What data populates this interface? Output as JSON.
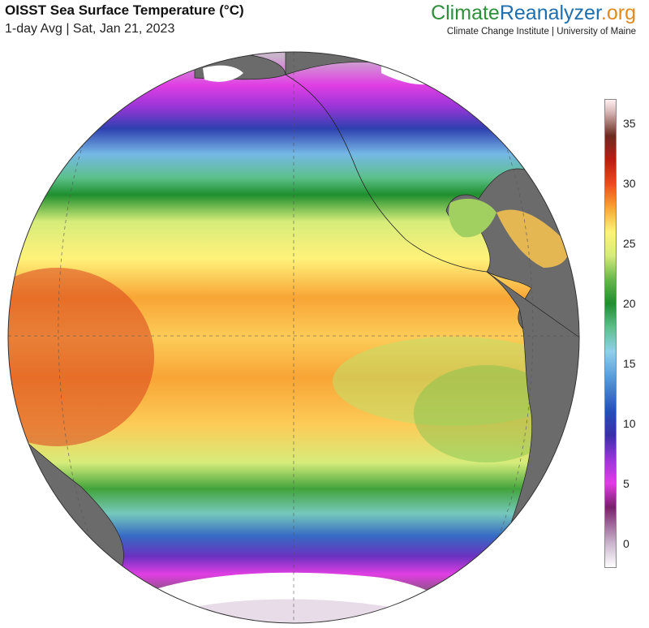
{
  "header": {
    "title": "OISST Sea Surface Temperature (°C)",
    "subtitle": "1-day Avg | Sat, Jan 21, 2023"
  },
  "brand": {
    "part1": "Climate",
    "part2": "Reanalyzer",
    "part3": ".org",
    "institution": "Climate Change Institute | University of Maine",
    "colors": {
      "climate": "#2f8f3a",
      "reanalyzer": "#1f6fae",
      "org": "#e08a1e"
    }
  },
  "colorbar": {
    "unit": "°C",
    "min": -2,
    "max": 37,
    "ticks": [
      {
        "value": 35,
        "label": "35"
      },
      {
        "value": 30,
        "label": "30"
      },
      {
        "value": 25,
        "label": "25"
      },
      {
        "value": 20,
        "label": "20"
      },
      {
        "value": 15,
        "label": "15"
      },
      {
        "value": 10,
        "label": "10"
      },
      {
        "value": 5,
        "label": "5"
      },
      {
        "value": 0,
        "label": "0"
      }
    ],
    "stops": [
      {
        "value": -2,
        "color": "#ffffff"
      },
      {
        "value": 0,
        "color": "#c9b4cc"
      },
      {
        "value": 3,
        "color": "#7a1f6e"
      },
      {
        "value": 5,
        "color": "#e03ee3"
      },
      {
        "value": 7,
        "color": "#9a35d8"
      },
      {
        "value": 9,
        "color": "#3a2fa8"
      },
      {
        "value": 11,
        "color": "#2450b8"
      },
      {
        "value": 14,
        "color": "#5aa0dd"
      },
      {
        "value": 16,
        "color": "#8fd0ec"
      },
      {
        "value": 18,
        "color": "#5cc08a"
      },
      {
        "value": 20,
        "color": "#1e8f2e"
      },
      {
        "value": 22,
        "color": "#66b84a"
      },
      {
        "value": 24,
        "color": "#d6ec7a"
      },
      {
        "value": 26,
        "color": "#fff27a"
      },
      {
        "value": 28,
        "color": "#f8a535"
      },
      {
        "value": 30,
        "color": "#ec4a1c"
      },
      {
        "value": 32,
        "color": "#b81e10"
      },
      {
        "value": 34,
        "color": "#6e2a1e"
      },
      {
        "value": 36,
        "color": "#d9b8b8"
      },
      {
        "value": 37,
        "color": "#fff0f0"
      }
    ]
  },
  "map": {
    "projection": "orthographic",
    "view": "Pacific Ocean centered globe",
    "land_color": "#6b6b6b",
    "ice_color": "#ffffff",
    "bands": [
      {
        "lat": 80,
        "sst": 0
      },
      {
        "lat": 62,
        "sst": 5
      },
      {
        "lat": 54,
        "sst": 7
      },
      {
        "lat": 47,
        "sst": 10
      },
      {
        "lat": 40,
        "sst": 15
      },
      {
        "lat": 34,
        "sst": 18
      },
      {
        "lat": 30,
        "sst": 20
      },
      {
        "lat": 24,
        "sst": 24
      },
      {
        "lat": 16,
        "sst": 26
      },
      {
        "lat": 8,
        "sst": 28
      },
      {
        "lat": 0,
        "sst": 27
      },
      {
        "lat": -8,
        "sst": 28
      },
      {
        "lat": -18,
        "sst": 27
      },
      {
        "lat": -26,
        "sst": 24
      },
      {
        "lat": -32,
        "sst": 21
      },
      {
        "lat": -38,
        "sst": 17
      },
      {
        "lat": -44,
        "sst": 12
      },
      {
        "lat": -50,
        "sst": 8
      },
      {
        "lat": -56,
        "sst": 5
      },
      {
        "lat": -62,
        "sst": 2
      },
      {
        "lat": -70,
        "sst": -1
      }
    ]
  }
}
